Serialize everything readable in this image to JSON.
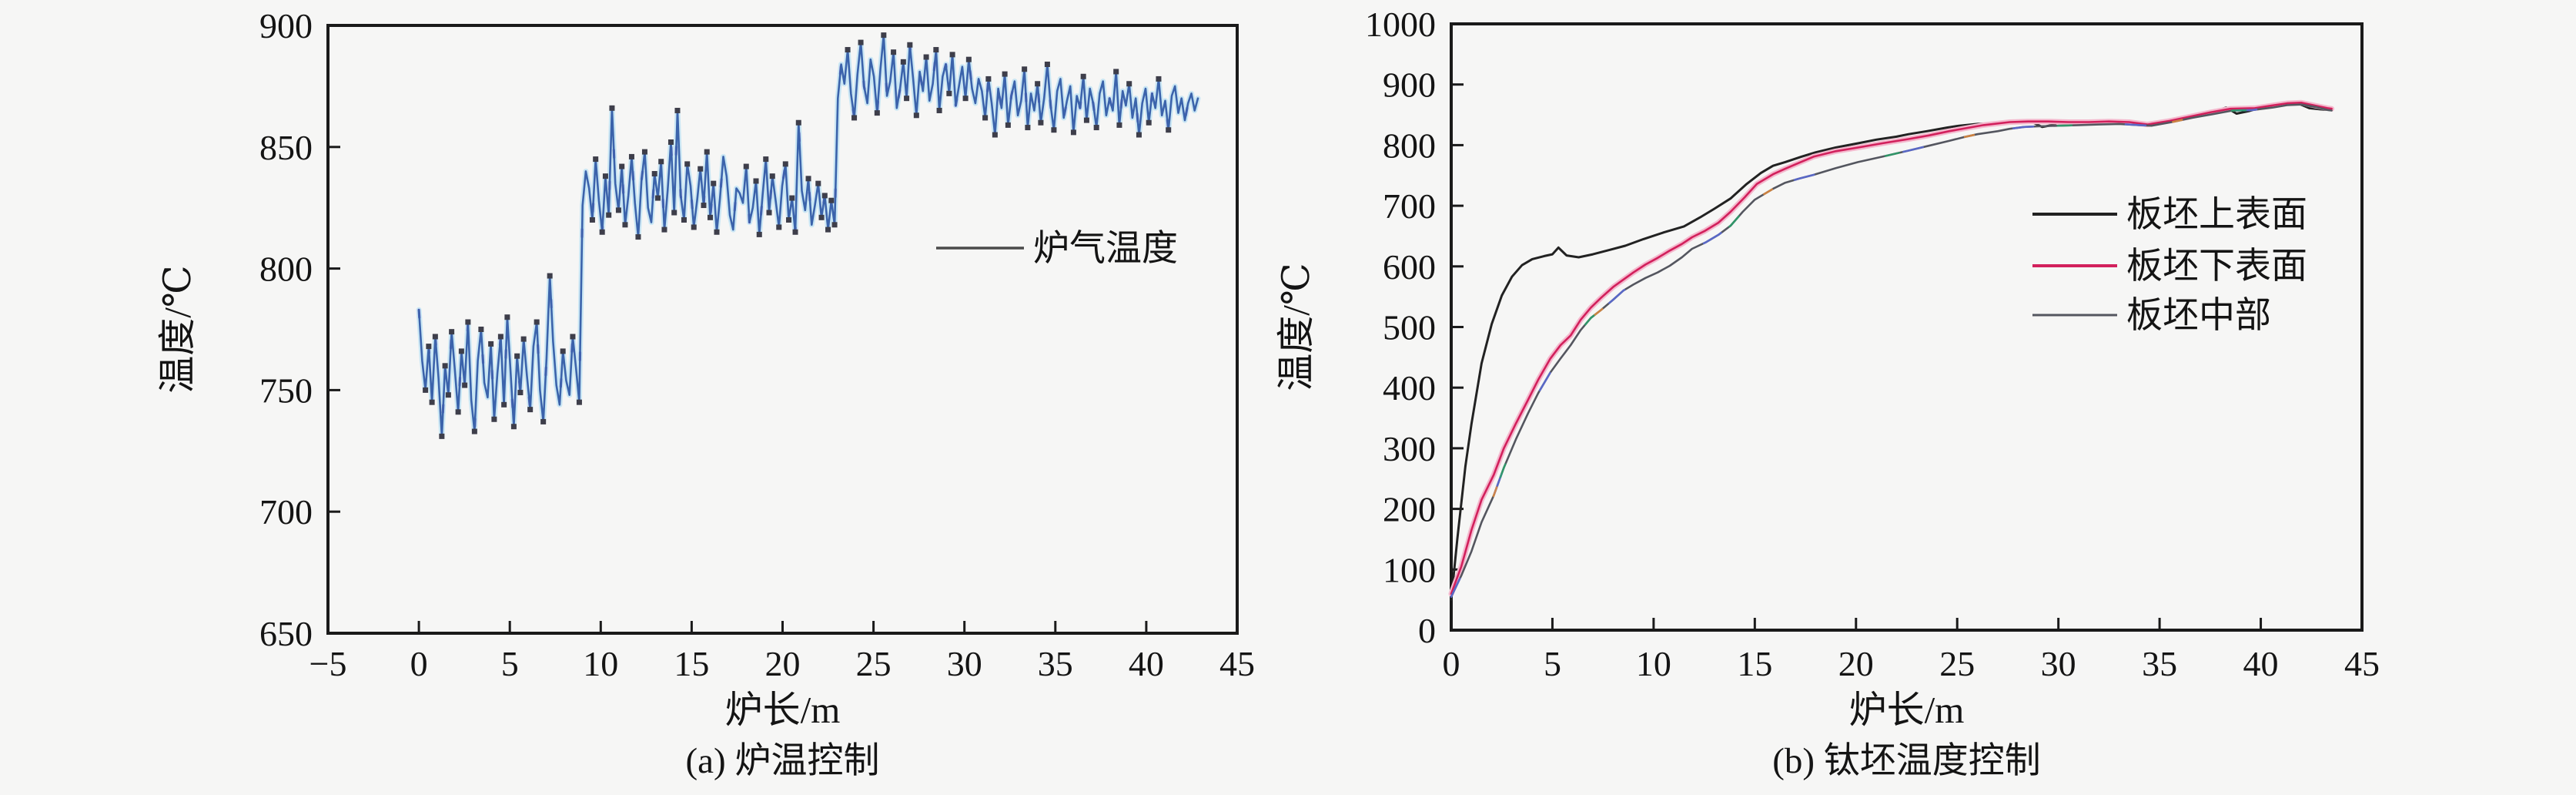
{
  "figure": {
    "background": "#f6f6f5",
    "axis_color": "#1a1a1a",
    "text_color": "#141414"
  },
  "chart_data": [
    {
      "id": "a",
      "type": "line",
      "caption": "(a) 炉温控制",
      "xlabel": "炉长/m",
      "ylabel": "温度/℃",
      "xlim": [
        -5,
        45
      ],
      "ylim": [
        650,
        900
      ],
      "xticks": [
        -5,
        0,
        5,
        10,
        15,
        20,
        25,
        30,
        35,
        40,
        45
      ],
      "yticks": [
        650,
        700,
        750,
        800,
        850,
        900
      ],
      "grid": false,
      "legend": {
        "position": "right-middle",
        "entries": [
          {
            "label": "炉气温度",
            "color": "#4a4a4a",
            "width": 3.5
          }
        ]
      },
      "series": [
        {
          "name": "炉气温度",
          "color": "#3b63ab",
          "width": 2.6,
          "halo": "#c9e6f4",
          "accent": "#6a55c0",
          "marker_color": "#3e3e4a",
          "markers": true,
          "x0": 0,
          "dx": 0.18,
          "values": [
            783,
            762,
            750,
            768,
            745,
            772,
            755,
            731,
            760,
            748,
            774,
            758,
            741,
            766,
            752,
            778,
            746,
            733,
            762,
            775,
            753,
            747,
            769,
            738,
            757,
            772,
            744,
            780,
            758,
            735,
            764,
            749,
            771,
            756,
            742,
            768,
            778,
            750,
            737,
            763,
            797,
            770,
            752,
            744,
            766,
            754,
            748,
            772,
            759,
            745,
            826,
            840,
            833,
            820,
            845,
            828,
            815,
            838,
            822,
            866,
            835,
            824,
            842,
            818,
            830,
            846,
            827,
            813,
            836,
            848,
            825,
            819,
            839,
            829,
            844,
            816,
            832,
            852,
            823,
            865,
            830,
            820,
            843,
            834,
            817,
            828,
            841,
            826,
            848,
            821,
            835,
            815,
            829,
            846,
            838,
            822,
            816,
            833,
            831,
            827,
            842,
            819,
            825,
            836,
            814,
            830,
            845,
            823,
            838,
            828,
            817,
            834,
            843,
            820,
            829,
            815,
            860,
            832,
            824,
            837,
            818,
            826,
            835,
            821,
            830,
            816,
            828,
            818,
            870,
            884,
            876,
            890,
            872,
            862,
            880,
            893,
            875,
            868,
            886,
            879,
            864,
            882,
            896,
            871,
            877,
            889,
            866,
            874,
            885,
            870,
            892,
            878,
            863,
            881,
            873,
            887,
            869,
            876,
            890,
            865,
            879,
            884,
            872,
            888,
            867,
            875,
            883,
            870,
            886,
            874,
            868,
            878,
            873,
            862,
            878,
            868,
            855,
            874,
            866,
            880,
            859,
            871,
            877,
            863,
            869,
            882,
            858,
            872,
            865,
            876,
            860,
            870,
            884,
            867,
            857,
            873,
            878,
            862,
            869,
            875,
            856,
            871,
            866,
            879,
            861,
            874,
            868,
            858,
            872,
            877,
            863,
            870,
            865,
            881,
            859,
            873,
            867,
            876,
            862,
            870,
            855,
            868,
            874,
            860,
            872,
            866,
            878,
            863,
            869,
            857,
            871,
            875,
            864,
            870,
            861,
            868,
            872,
            865,
            870
          ]
        }
      ]
    },
    {
      "id": "b",
      "type": "line",
      "caption": "(b) 钛坯温度控制",
      "xlabel": "炉长/m",
      "ylabel": "温度/℃",
      "xlim": [
        0,
        45
      ],
      "ylim": [
        0,
        1000
      ],
      "xticks": [
        0,
        5,
        10,
        15,
        20,
        25,
        30,
        35,
        40,
        45
      ],
      "yticks": [
        0,
        100,
        200,
        300,
        400,
        500,
        600,
        700,
        800,
        900,
        1000
      ],
      "grid": false,
      "legend": {
        "position": "right-middle",
        "entries": [
          {
            "label": "板坯上表面",
            "color": "#222222",
            "width": 4
          },
          {
            "label": "板坯下表面",
            "color": "#d2205c",
            "width": 4
          },
          {
            "label": "板坯中部",
            "color": "#54565f",
            "width": 3
          }
        ]
      },
      "series": [
        {
          "name": "板坯上表面",
          "color": "#222222",
          "width": 3,
          "points": [
            [
              0,
              50
            ],
            [
              0.3,
              150
            ],
            [
              0.7,
              270
            ],
            [
              1,
              340
            ],
            [
              1.5,
              440
            ],
            [
              2,
              505
            ],
            [
              2.5,
              552
            ],
            [
              3,
              583
            ],
            [
              3.5,
              602
            ],
            [
              4,
              612
            ],
            [
              4.6,
              617
            ],
            [
              5,
              620
            ],
            [
              5.3,
              631
            ],
            [
              5.7,
              618
            ],
            [
              6.3,
              615
            ],
            [
              7,
              620
            ],
            [
              7.8,
              627
            ],
            [
              8.6,
              634
            ],
            [
              9.5,
              645
            ],
            [
              10.5,
              656
            ],
            [
              11.5,
              666
            ],
            [
              12.3,
              681
            ],
            [
              13,
              695
            ],
            [
              13.8,
              712
            ],
            [
              14.6,
              736
            ],
            [
              15.3,
              754
            ],
            [
              15.9,
              766
            ],
            [
              16.5,
              772
            ],
            [
              17.3,
              781
            ],
            [
              18,
              788
            ],
            [
              19,
              796
            ],
            [
              20.1,
              803
            ],
            [
              21,
              809
            ],
            [
              22,
              814
            ],
            [
              22.6,
              818
            ],
            [
              23.5,
              823
            ],
            [
              24.5,
              829
            ],
            [
              25.1,
              832
            ],
            [
              26,
              835
            ],
            [
              27,
              836
            ],
            [
              28,
              838
            ],
            [
              28.7,
              838
            ],
            [
              29.2,
              830
            ],
            [
              29.7,
              833
            ],
            [
              30.2,
              840
            ],
            [
              31,
              839
            ],
            [
              32,
              837
            ],
            [
              33,
              836
            ],
            [
              34,
              834
            ],
            [
              34.5,
              833
            ],
            [
              35.5,
              839
            ],
            [
              36.5,
              846
            ],
            [
              37.5,
              853
            ],
            [
              38.3,
              862
            ],
            [
              38.8,
              852
            ],
            [
              39.4,
              856
            ],
            [
              40,
              862
            ],
            [
              40.7,
              866
            ],
            [
              41.3,
              870
            ],
            [
              41.9,
              868
            ],
            [
              42.4,
              861
            ],
            [
              43,
              859
            ],
            [
              43.5,
              858
            ]
          ]
        },
        {
          "name": "板坯下表面",
          "color": "#d2205c",
          "width": 2.6,
          "halo": "#f4b8cd",
          "points": [
            [
              0,
              60
            ],
            [
              0.5,
              105
            ],
            [
              1,
              165
            ],
            [
              1.5,
              215
            ],
            [
              2.1,
              256
            ],
            [
              2.6,
              300
            ],
            [
              3.2,
              341
            ],
            [
              3.8,
              380
            ],
            [
              4.3,
              413
            ],
            [
              4.9,
              448
            ],
            [
              5.4,
              470
            ],
            [
              5.9,
              486
            ],
            [
              6.4,
              512
            ],
            [
              6.9,
              532
            ],
            [
              7.4,
              548
            ],
            [
              8,
              566
            ],
            [
              8.5,
              578
            ],
            [
              9,
              590
            ],
            [
              9.6,
              603
            ],
            [
              10.2,
              614
            ],
            [
              10.8,
              626
            ],
            [
              11.4,
              637
            ],
            [
              11.9,
              648
            ],
            [
              12.5,
              658
            ],
            [
              13.2,
              672
            ],
            [
              13.8,
              690
            ],
            [
              14.5,
              714
            ],
            [
              15.1,
              736
            ],
            [
              15.9,
              752
            ],
            [
              16.5,
              761
            ],
            [
              17.2,
              771
            ],
            [
              17.9,
              781
            ],
            [
              19,
              790
            ],
            [
              20.1,
              796
            ],
            [
              21.3,
              803
            ],
            [
              22.6,
              810
            ],
            [
              23.6,
              816
            ],
            [
              24.6,
              823
            ],
            [
              25.6,
              829
            ],
            [
              26.3,
              833
            ],
            [
              27.6,
              838
            ],
            [
              28.5,
              839
            ],
            [
              29.5,
              839
            ],
            [
              30.5,
              838
            ],
            [
              31.5,
              838
            ],
            [
              32.5,
              839
            ],
            [
              33.5,
              838
            ],
            [
              34.4,
              834
            ],
            [
              35.5,
              840
            ],
            [
              36.5,
              847
            ],
            [
              37.5,
              854
            ],
            [
              38.5,
              860
            ],
            [
              39.7,
              861
            ],
            [
              40.5,
              865
            ],
            [
              41.3,
              869
            ],
            [
              42,
              870
            ],
            [
              42.7,
              865
            ],
            [
              43.3,
              861
            ],
            [
              43.5,
              860
            ]
          ]
        },
        {
          "name": "板坯中部",
          "color": "#54565f",
          "width": 2.6,
          "overlays": [
            {
              "color": "#5a6bd8",
              "dash": "26 120",
              "offset": 0
            },
            {
              "color": "#2aa06a",
              "dash": "18 210",
              "offset": 60
            },
            {
              "color": "#e08a3c",
              "dash": "12 260",
              "offset": 130
            }
          ],
          "points": [
            [
              0,
              55
            ],
            [
              0.5,
              90
            ],
            [
              1,
              130
            ],
            [
              1.5,
              178
            ],
            [
              2.1,
              222
            ],
            [
              2.6,
              268
            ],
            [
              3.2,
              315
            ],
            [
              3.8,
              358
            ],
            [
              4.3,
              391
            ],
            [
              4.9,
              425
            ],
            [
              5.4,
              448
            ],
            [
              5.9,
              470
            ],
            [
              6.4,
              495
            ],
            [
              6.9,
              515
            ],
            [
              7.4,
              528
            ],
            [
              8,
              545
            ],
            [
              8.5,
              560
            ],
            [
              9,
              570
            ],
            [
              9.6,
              581
            ],
            [
              10.2,
              590
            ],
            [
              10.8,
              601
            ],
            [
              11.4,
              615
            ],
            [
              11.9,
              629
            ],
            [
              12.6,
              640
            ],
            [
              13.2,
              652
            ],
            [
              13.8,
              667
            ],
            [
              14.4,
              690
            ],
            [
              15,
              710
            ],
            [
              15.9,
              728
            ],
            [
              16.5,
              738
            ],
            [
              17.2,
              745
            ],
            [
              17.9,
              751
            ],
            [
              19,
              762
            ],
            [
              20.1,
              772
            ],
            [
              21.3,
              781
            ],
            [
              22.6,
              791
            ],
            [
              23.6,
              799
            ],
            [
              24.6,
              807
            ],
            [
              25.3,
              813
            ],
            [
              26,
              818
            ],
            [
              27,
              823
            ],
            [
              27.6,
              827
            ],
            [
              28.3,
              830
            ],
            [
              29,
              831
            ],
            [
              30,
              832
            ],
            [
              31,
              833
            ],
            [
              32,
              834
            ],
            [
              33,
              835
            ],
            [
              34,
              833
            ],
            [
              34.6,
              832
            ],
            [
              35.6,
              838
            ],
            [
              36.6,
              845
            ],
            [
              37.6,
              851
            ],
            [
              38.6,
              857
            ],
            [
              39.6,
              858
            ],
            [
              40.6,
              862
            ],
            [
              41.3,
              866
            ],
            [
              42,
              867
            ],
            [
              42.7,
              863
            ],
            [
              43.3,
              858
            ],
            [
              43.5,
              857
            ]
          ]
        }
      ]
    }
  ]
}
